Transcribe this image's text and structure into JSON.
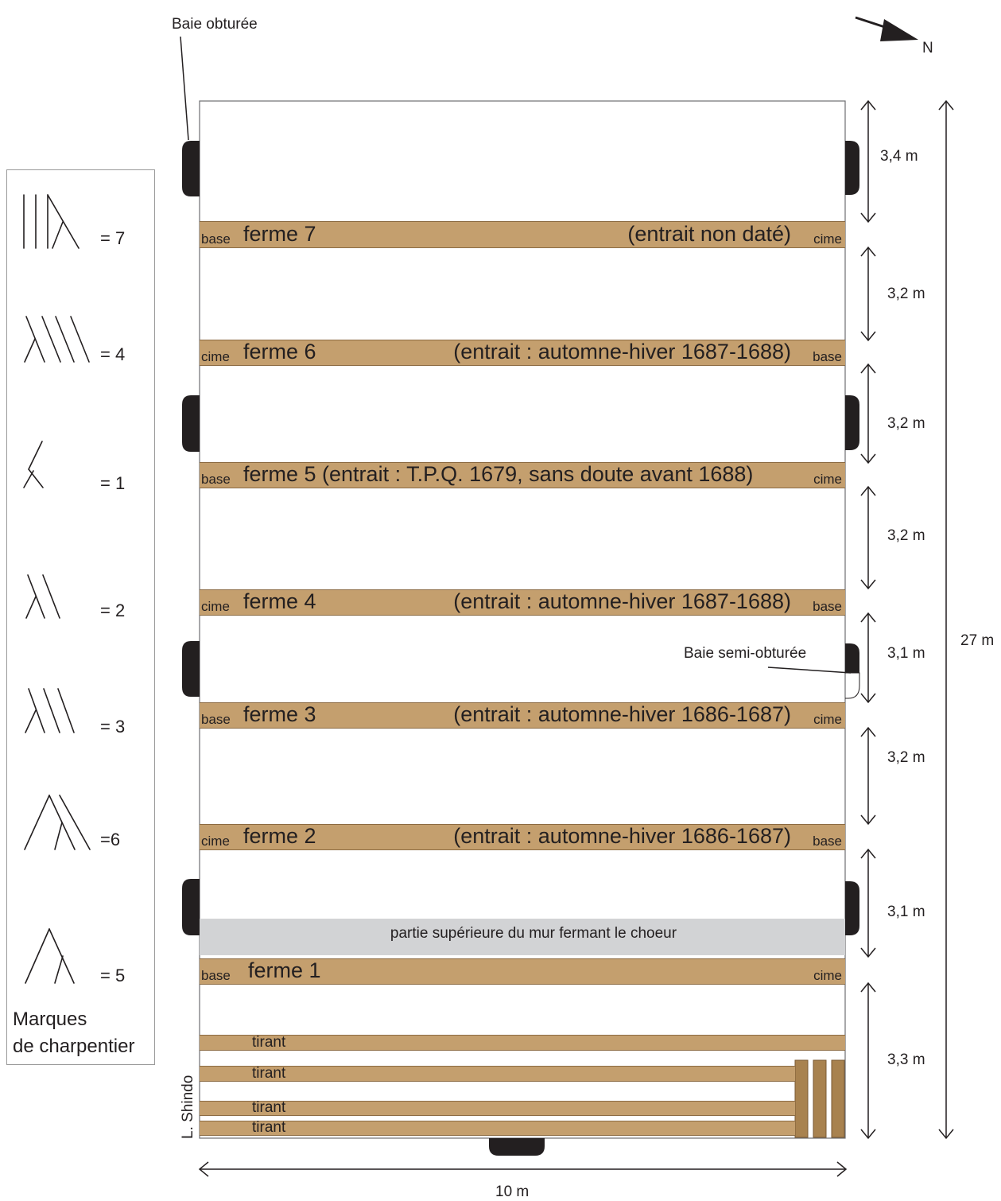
{
  "labels": {
    "baie_obturee": "Baie obturée",
    "baie_semi": "Baie semi-obturée",
    "north": "N",
    "width": "10 m",
    "total_length": "27 m",
    "mur": "partie supérieure du mur fermant le choeur",
    "author": "L. Shindo"
  },
  "legend": {
    "title_line1": "Marques",
    "title_line2": "de charpentier",
    "marks": [
      {
        "icon": "mark-7",
        "value": "= 7"
      },
      {
        "icon": "mark-4",
        "value": "= 4"
      },
      {
        "icon": "mark-1",
        "value": "= 1"
      },
      {
        "icon": "mark-2",
        "value": "= 2"
      },
      {
        "icon": "mark-3",
        "value": "= 3"
      },
      {
        "icon": "mark-6",
        "value": "=6"
      },
      {
        "icon": "mark-5",
        "value": "= 5"
      }
    ]
  },
  "fermes": [
    {
      "left": "base",
      "name": "ferme 7",
      "note": "(entrait non daté)",
      "right": "cime"
    },
    {
      "left": "cime",
      "name": "ferme 6",
      "note": "(entrait : automne-hiver 1687-1688)",
      "right": "base"
    },
    {
      "left": "base",
      "name": "ferme 5 (entrait : T.P.Q. 1679, sans doute avant 1688)",
      "note": "",
      "right": "cime"
    },
    {
      "left": "cime",
      "name": "ferme 4",
      "note": "(entrait : automne-hiver 1687-1688)",
      "right": "base"
    },
    {
      "left": "base",
      "name": "ferme 3",
      "note": "(entrait : automne-hiver 1686-1687)",
      "right": "cime"
    },
    {
      "left": "cime",
      "name": "ferme 2",
      "note": "(entrait : automne-hiver 1686-1687)",
      "right": "base"
    },
    {
      "left": "base",
      "name": "ferme 1",
      "note": "",
      "right": "cime"
    }
  ],
  "tirants": [
    "tirant",
    "tirant",
    "tirant",
    "tirant"
  ],
  "spacings": [
    "3,4 m",
    "3,2 m",
    "3,2 m",
    "3,2 m",
    "3,1 m",
    "3,2 m",
    "3,1 m",
    "3,3 m"
  ],
  "colors": {
    "wood": "#c49f6e",
    "wood_dark": "#a8824f",
    "wall": "#d2d3d5",
    "opening": "#231f20",
    "line": "#231f20"
  }
}
